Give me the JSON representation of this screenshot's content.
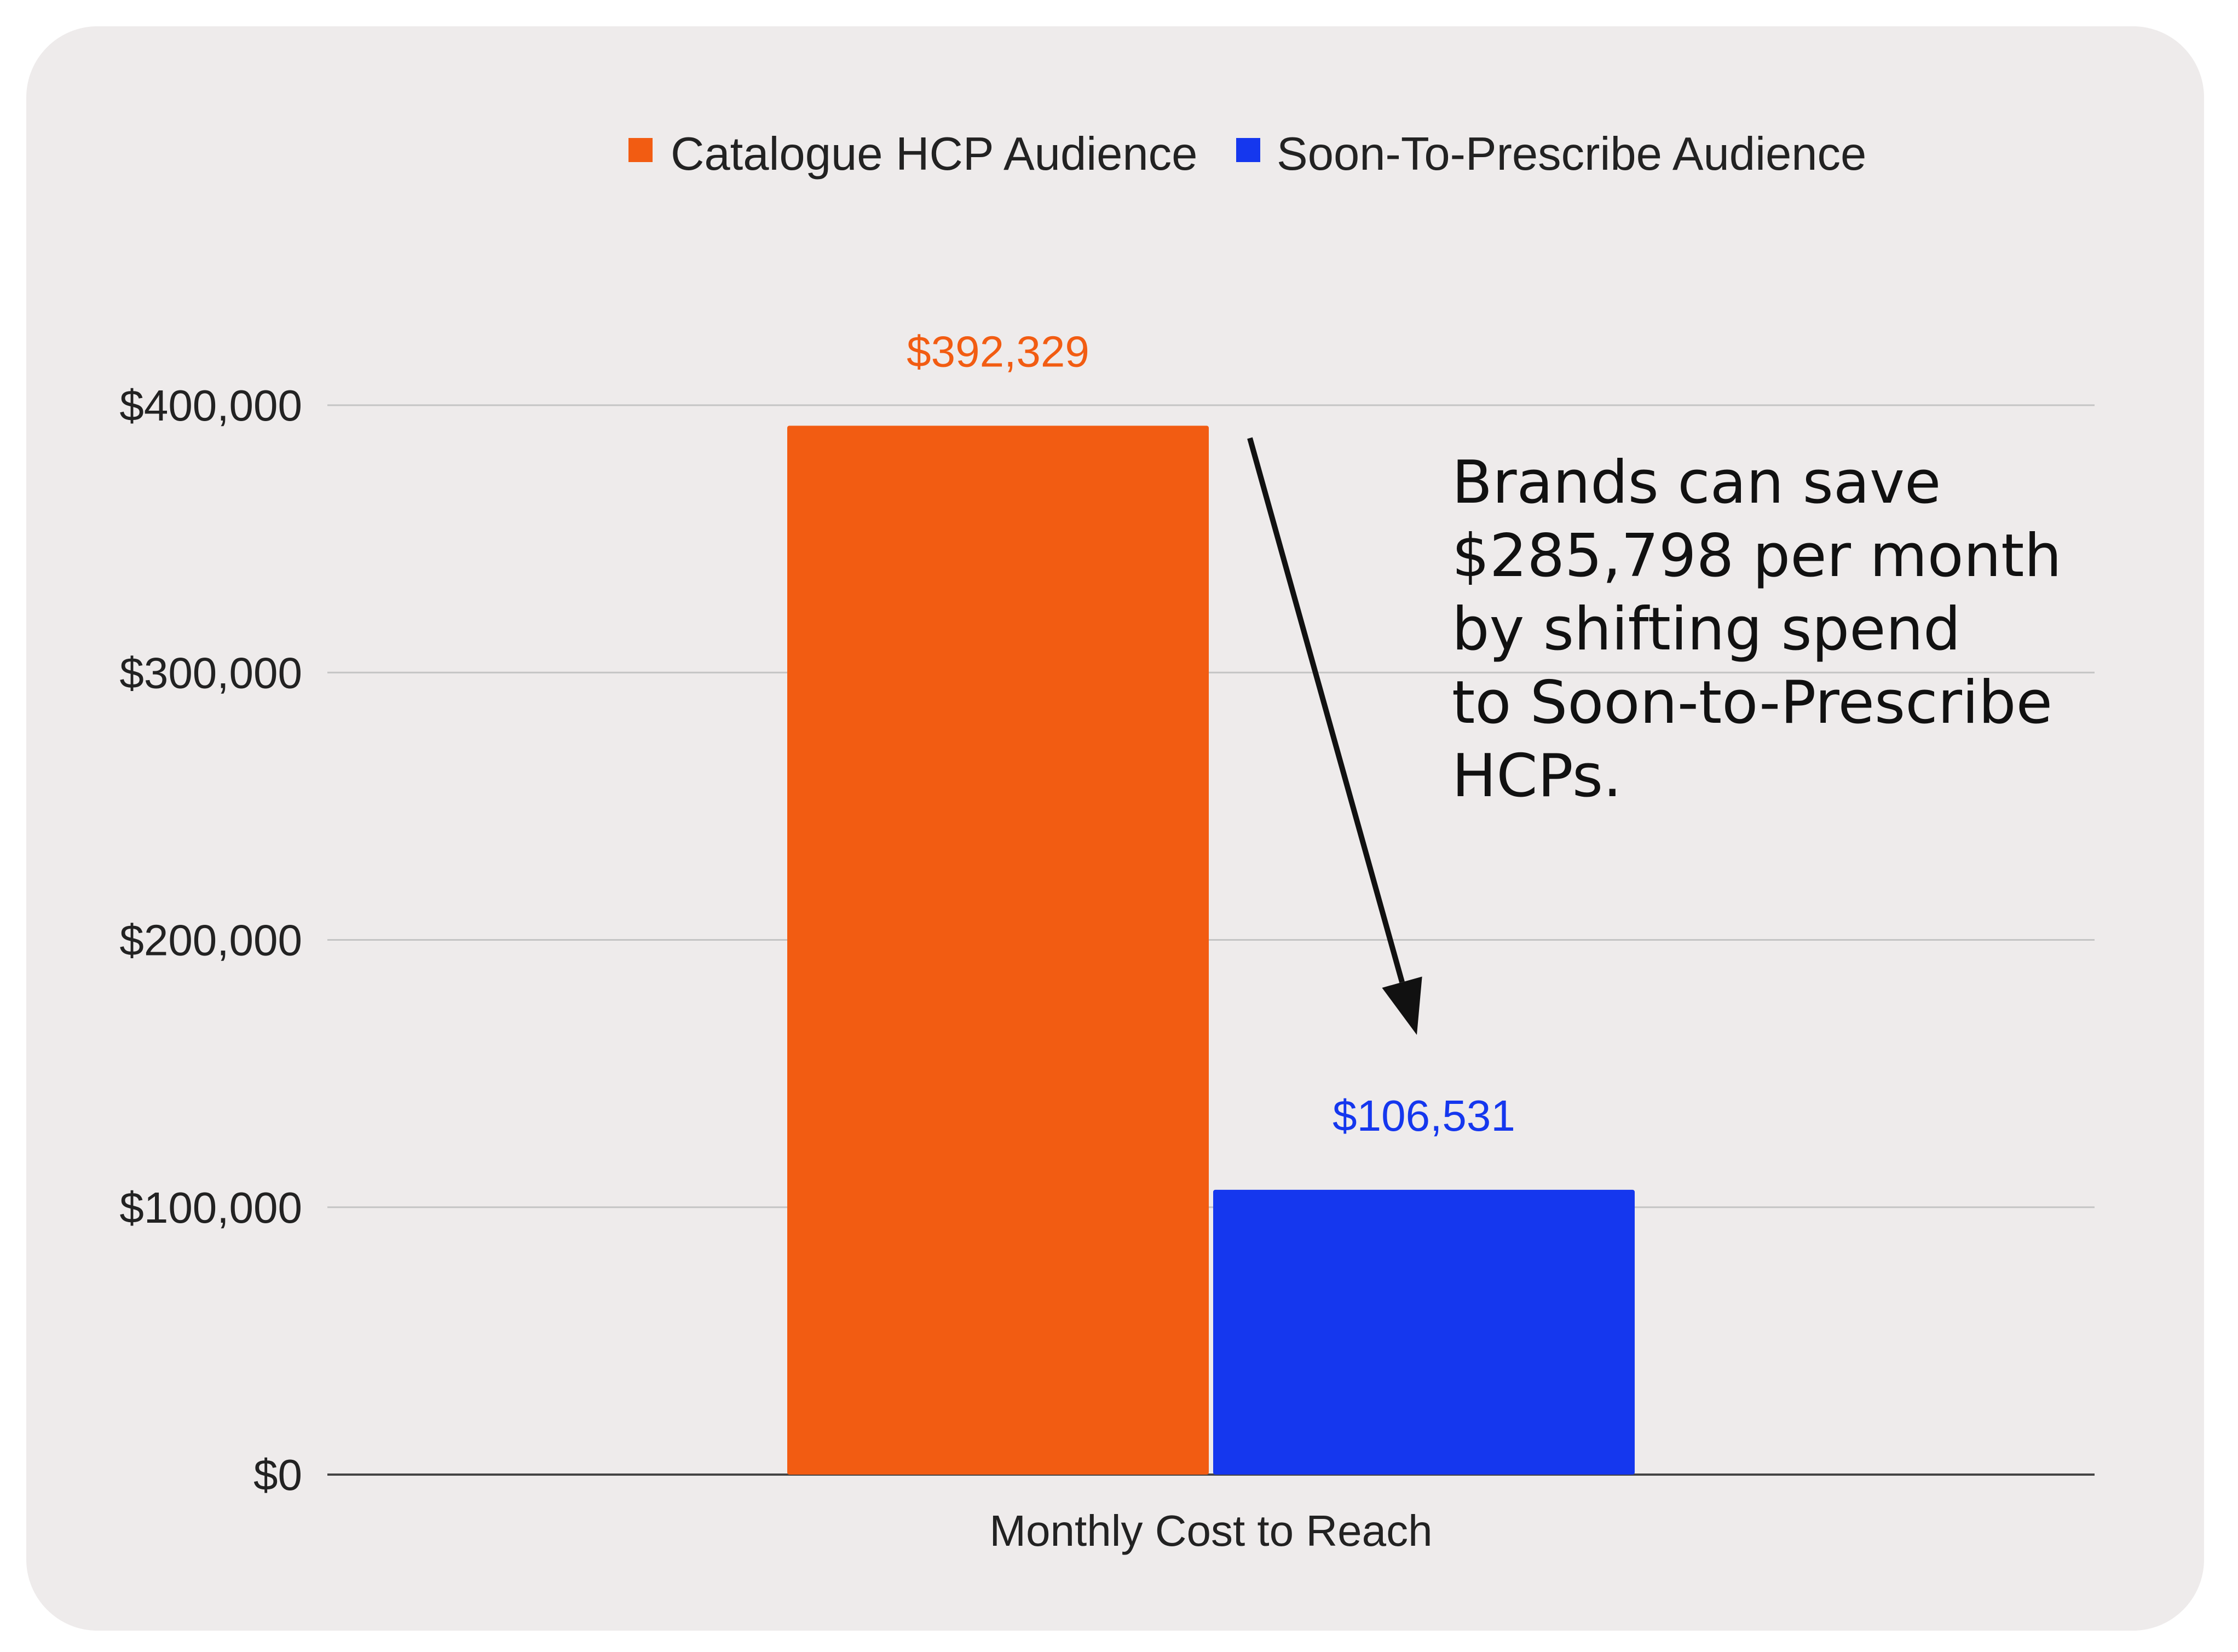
{
  "chart_data": {
    "type": "bar",
    "categories": [
      "Monthly Cost to Reach"
    ],
    "series": [
      {
        "name": "Catalogue HCP Audience",
        "values": [
          392329
        ],
        "color": "#F25C12",
        "label": "$392,329"
      },
      {
        "name": "Soon-To-Prescribe Audience",
        "values": [
          106531
        ],
        "color": "#1537EE",
        "label": "$106,531"
      }
    ],
    "title": "",
    "xlabel": "",
    "ylabel": "",
    "ylim": [
      0,
      400000
    ],
    "yticks": [
      {
        "value": 0,
        "label": "$0"
      },
      {
        "value": 100000,
        "label": "$100,000"
      },
      {
        "value": 200000,
        "label": "$200,000"
      },
      {
        "value": 300000,
        "label": "$300,000"
      },
      {
        "value": 400000,
        "label": "$400,000"
      }
    ],
    "grid": true,
    "legend_position": "top",
    "annotation": {
      "lines": [
        "Brands can save",
        "$285,798 per month",
        "by shifting spend",
        "to Soon-to-Prescribe",
        "HCPs."
      ],
      "arrow": "from Catalogue HCP Audience bar to Soon-To-Prescribe Audience bar"
    }
  },
  "colors": {
    "card_background": "#EEEBEB",
    "page_background": "#FFFFFF",
    "gridline": "#C4C4C4",
    "baseline": "#444444",
    "arrow": "#111111"
  }
}
